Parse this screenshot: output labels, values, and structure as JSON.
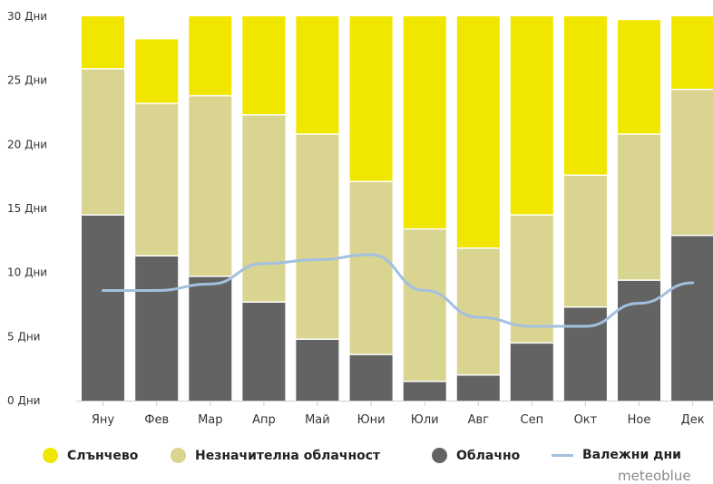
{
  "chart_data": {
    "type": "bar",
    "stacked": true,
    "categories": [
      "Яну",
      "Фев",
      "Мар",
      "Апр",
      "Май",
      "Юни",
      "Юли",
      "Авг",
      "Сеп",
      "Окт",
      "Ное",
      "Дек"
    ],
    "series": [
      {
        "name": "Облачно",
        "color": "#636363",
        "values": [
          14.5,
          11.3,
          9.7,
          7.7,
          4.8,
          3.6,
          1.5,
          2.0,
          4.5,
          7.3,
          9.4,
          12.9
        ]
      },
      {
        "name": "Незначителна облачност",
        "color": "#d9d490",
        "values": [
          11.4,
          11.9,
          14.1,
          14.6,
          16.0,
          13.5,
          11.9,
          9.9,
          10.0,
          10.3,
          11.4,
          11.4
        ]
      },
      {
        "name": "Слънчево",
        "color": "#f1e600",
        "values": [
          4.1,
          5.0,
          6.2,
          7.7,
          9.2,
          12.9,
          16.6,
          18.1,
          15.5,
          12.4,
          8.9,
          5.7
        ]
      }
    ],
    "line_series": {
      "name": "Валежни дни",
      "color": "#a3c0e0",
      "values": [
        8.6,
        8.6,
        9.1,
        10.7,
        11.0,
        11.4,
        8.6,
        6.5,
        5.8,
        5.8,
        7.6,
        9.2
      ]
    },
    "ylim": [
      0,
      30
    ],
    "yticks": [
      0,
      5,
      10,
      15,
      20,
      25,
      30
    ],
    "ytick_labels": [
      "0 Дни",
      "5 Дни",
      "10 Дни",
      "15 Дни",
      "20 Дни",
      "25 Дни",
      "30 Дни"
    ],
    "grid": false,
    "legend_position": "bottom"
  },
  "legend": [
    {
      "label": "Слънчево",
      "color": "#f1e600",
      "shape": "dot"
    },
    {
      "label": "Незначителна облачност",
      "color": "#d9d490",
      "shape": "dot"
    },
    {
      "label": "Облачно",
      "color": "#636363",
      "shape": "dot"
    },
    {
      "label": "Валежни дни",
      "color": "#a3c0e0",
      "shape": "line"
    }
  ],
  "brand": "meteoblue"
}
